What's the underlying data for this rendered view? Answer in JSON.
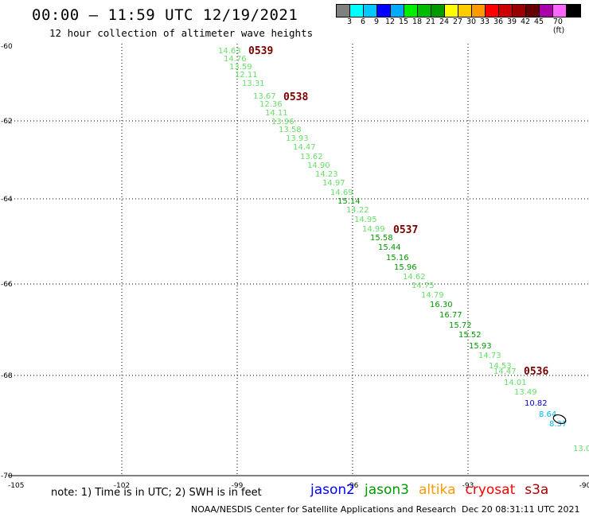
{
  "header": {
    "title": "00:00 – 11:59 UTC 12/19/2021",
    "subtitle": "12 hour collection of altimeter wave heights"
  },
  "colorbar": {
    "colors": [
      "#808080",
      "#00ffff",
      "#00c8ff",
      "#0000ff",
      "#00aaff",
      "#00ee00",
      "#00bb00",
      "#009900",
      "#ffff00",
      "#ffcc00",
      "#ff9900",
      "#ff0000",
      "#cc0000",
      "#990000",
      "#660000",
      "#aa00aa",
      "#ff66ff",
      "#000000"
    ],
    "labels": [
      "3",
      "6",
      "9",
      "12",
      "15",
      "18",
      "21",
      "24",
      "27",
      "30",
      "33",
      "36",
      "39",
      "42",
      "45",
      "70 (ft)"
    ]
  },
  "axes": {
    "lat_ticks": [
      "-60",
      "-62",
      "-64",
      "-66",
      "-68",
      "-70"
    ],
    "lon_ticks": [
      "-105",
      "-102",
      "-99",
      "-96",
      "-93",
      "-90"
    ]
  },
  "passes": [
    "0539",
    "0538",
    "0537",
    "0536"
  ],
  "points": [
    {
      "v": "14.63",
      "c": "#66dd66"
    },
    {
      "v": "14.76",
      "c": "#66dd66"
    },
    {
      "v": "13.59",
      "c": "#66dd66"
    },
    {
      "v": "12.11",
      "c": "#66dd66"
    },
    {
      "v": "13.31",
      "c": "#66dd66"
    },
    {
      "v": "13.67",
      "c": "#66dd66"
    },
    {
      "v": "12.36",
      "c": "#66dd66"
    },
    {
      "v": "14.11",
      "c": "#66dd66"
    },
    {
      "v": "13.96",
      "c": "#66dd66"
    },
    {
      "v": "13.58",
      "c": "#66dd66"
    },
    {
      "v": "13.93",
      "c": "#66dd66"
    },
    {
      "v": "14.47",
      "c": "#66dd66"
    },
    {
      "v": "13.62",
      "c": "#66dd66"
    },
    {
      "v": "14.90",
      "c": "#66dd66"
    },
    {
      "v": "14.23",
      "c": "#66dd66"
    },
    {
      "v": "14.97",
      "c": "#66dd66"
    },
    {
      "v": "14.69",
      "c": "#66dd66"
    },
    {
      "v": "15.14",
      "c": "#009900"
    },
    {
      "v": "14.22",
      "c": "#66dd66"
    },
    {
      "v": "14.95",
      "c": "#66dd66"
    },
    {
      "v": "14.99",
      "c": "#66dd66"
    },
    {
      "v": "15.58",
      "c": "#009900"
    },
    {
      "v": "15.44",
      "c": "#009900"
    },
    {
      "v": "15.16",
      "c": "#009900"
    },
    {
      "v": "15.96",
      "c": "#009900"
    },
    {
      "v": "14.62",
      "c": "#66dd66"
    },
    {
      "v": "14.75",
      "c": "#66dd66"
    },
    {
      "v": "14.79",
      "c": "#66dd66"
    },
    {
      "v": "16.30",
      "c": "#009900"
    },
    {
      "v": "16.77",
      "c": "#009900"
    },
    {
      "v": "15.72",
      "c": "#009900"
    },
    {
      "v": "15.52",
      "c": "#009900"
    },
    {
      "v": "15.93",
      "c": "#009900"
    },
    {
      "v": "14.73",
      "c": "#66dd66"
    },
    {
      "v": "14.53",
      "c": "#66dd66"
    },
    {
      "v": "14.47",
      "c": "#66dd66"
    },
    {
      "v": "14.01",
      "c": "#66dd66"
    },
    {
      "v": "13.49",
      "c": "#66dd66"
    },
    {
      "v": "10.82",
      "c": "#0000cc"
    },
    {
      "v": "8.64",
      "c": "#00bbee"
    },
    {
      "v": "8.37",
      "c": "#00bbee"
    },
    {
      "v": "13.0",
      "c": "#66dd66"
    }
  ],
  "footer": {
    "note": "note: 1) Time is in UTC; 2) SWH is in feet",
    "satellites": [
      {
        "name": "jason2",
        "color": "#0000ff"
      },
      {
        "name": "jason3",
        "color": "#009900"
      },
      {
        "name": "altika",
        "color": "#ff9900"
      },
      {
        "name": "cryosat",
        "color": "#ff0000"
      },
      {
        "name": "s3a",
        "color": "#aa0000"
      }
    ],
    "credit": "NOAA/NESDIS Center for Satellite Applications and Research",
    "timestamp": "Dec 20 08:31:11 UTC 2021"
  }
}
